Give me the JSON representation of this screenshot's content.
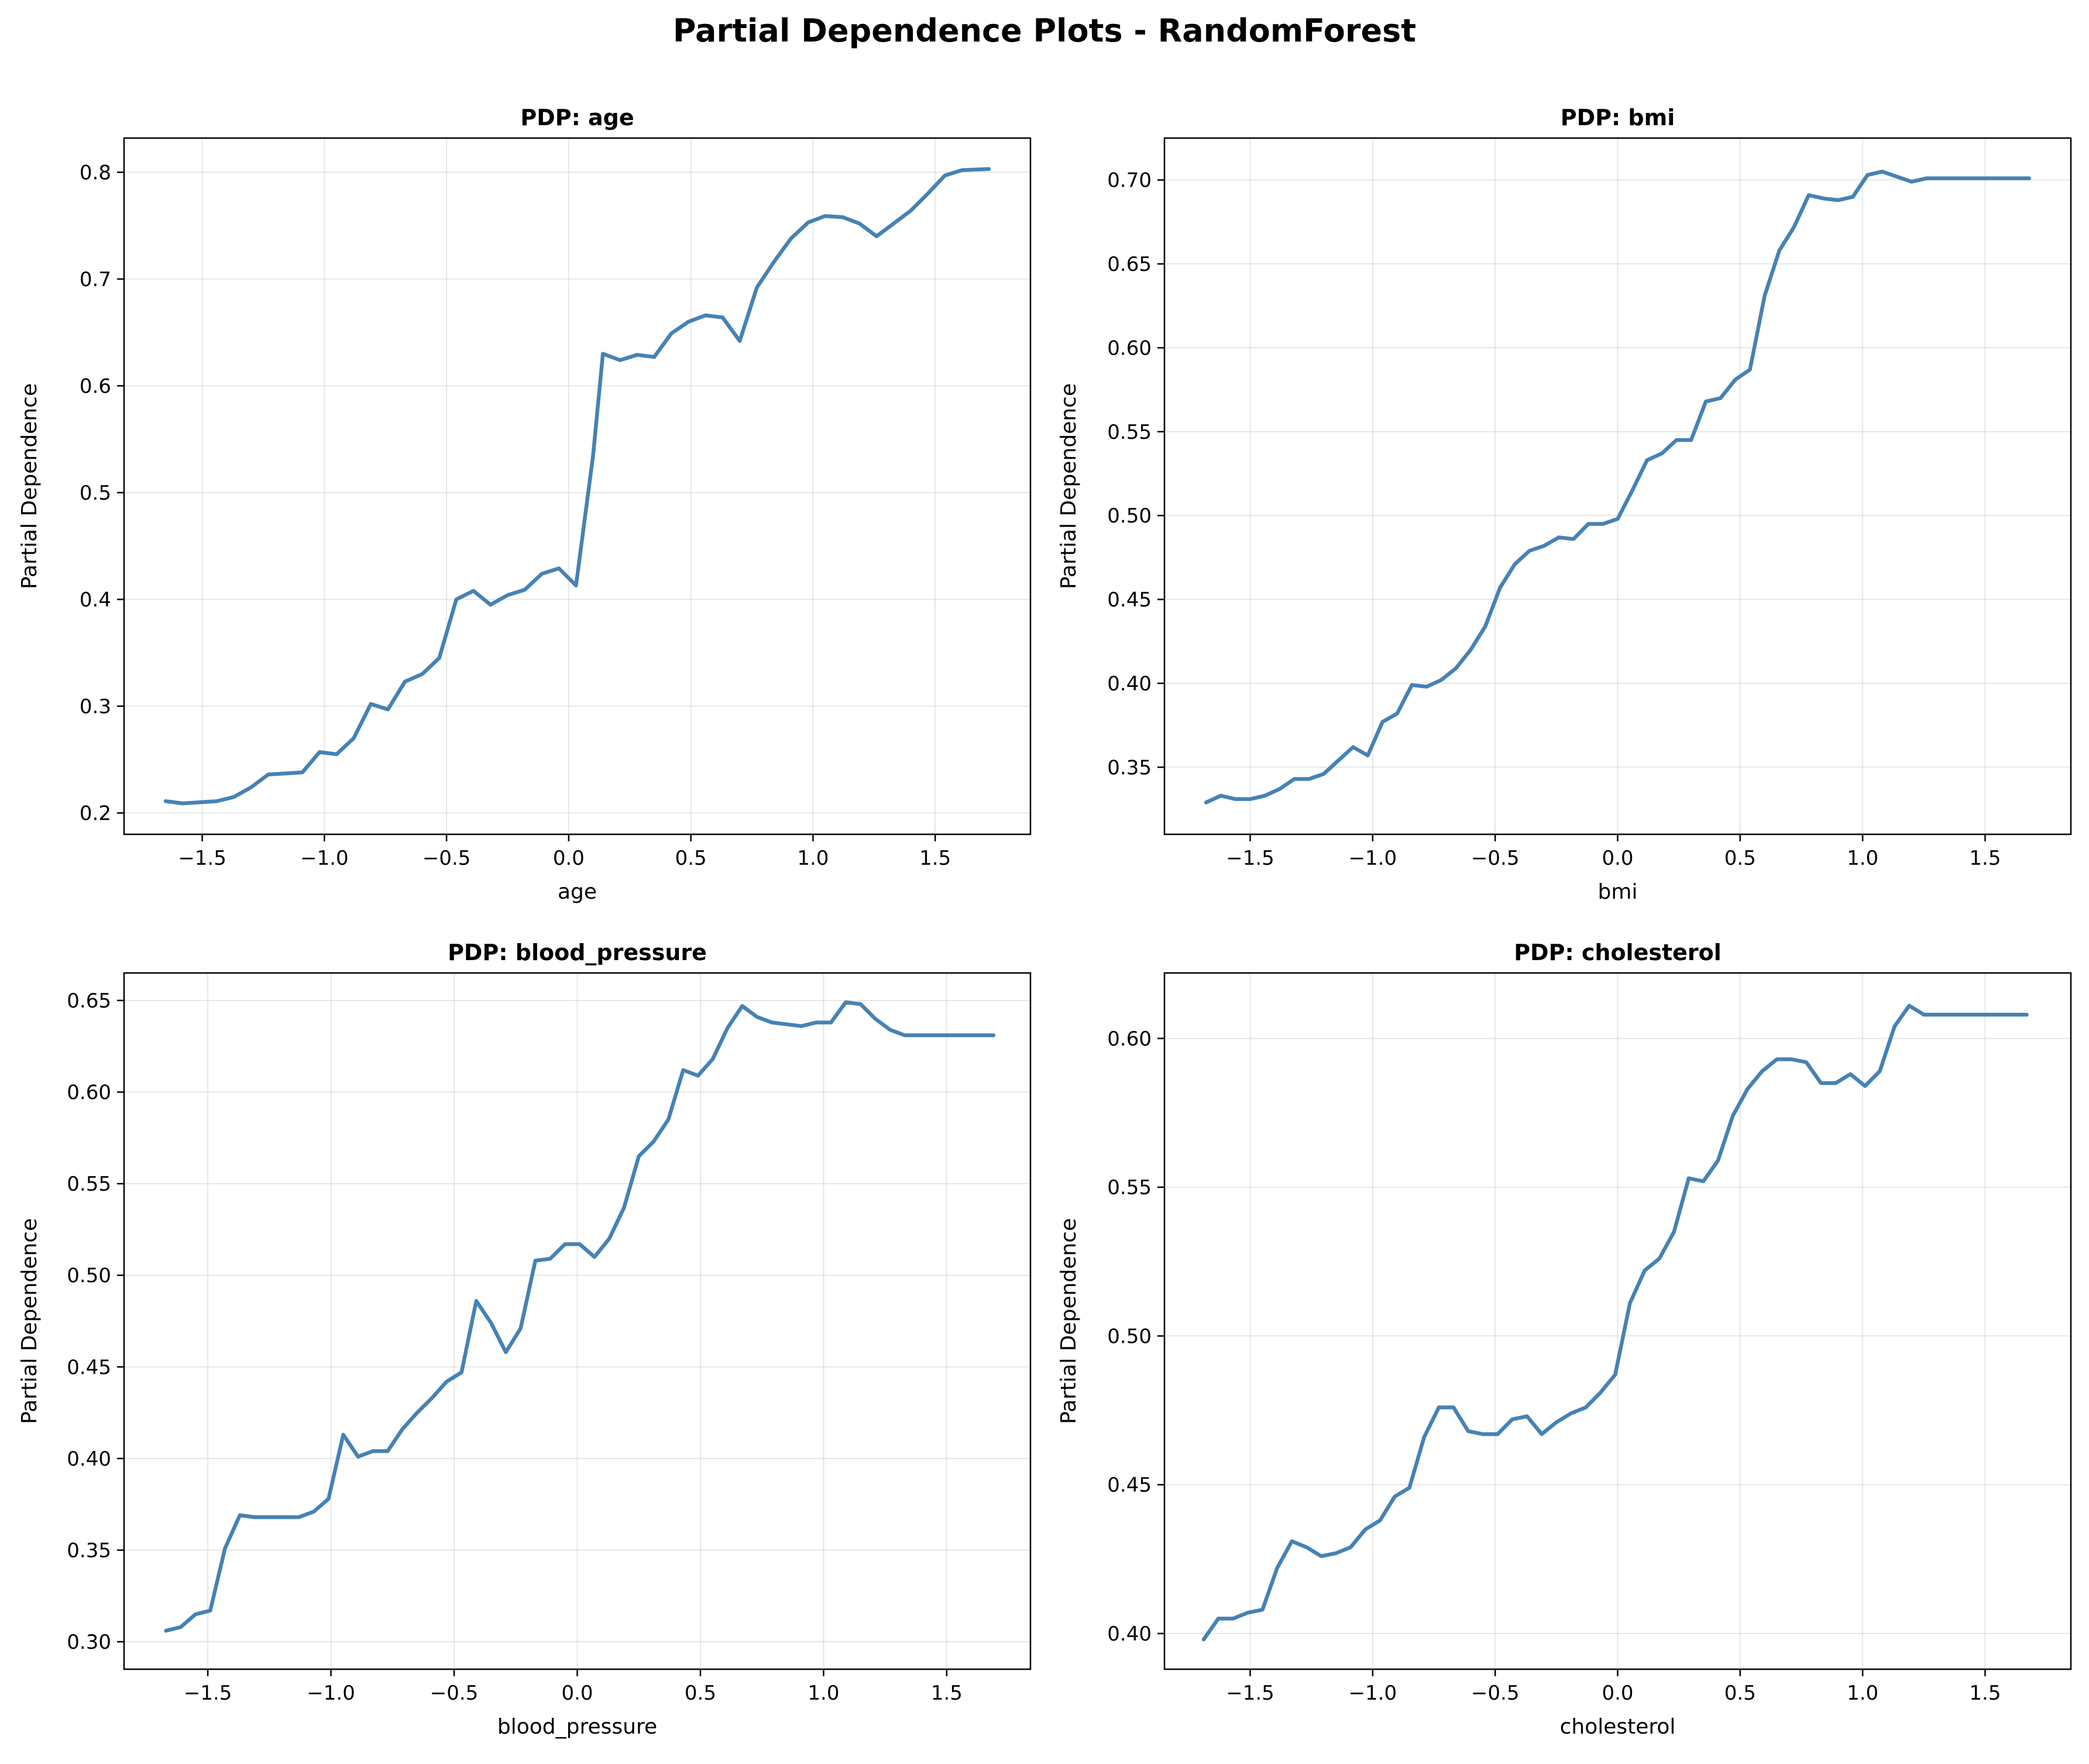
{
  "title": "Partial Dependence Plots - RandomForest",
  "line_color": "#4682b4",
  "chart_data": [
    {
      "type": "line",
      "title": "PDP: age",
      "xlabel": "age",
      "ylabel": "Partial Dependence",
      "xlim": [
        -1.82,
        1.89
      ],
      "ylim": [
        0.18,
        0.832
      ],
      "xticks": [
        -1.5,
        -1.0,
        -0.5,
        0.0,
        0.5,
        1.0,
        1.5
      ],
      "xtick_labels": [
        "−1.5",
        "−1.0",
        "−0.5",
        "0.0",
        "0.5",
        "1.0",
        "1.5"
      ],
      "yticks": [
        0.2,
        0.3,
        0.4,
        0.5,
        0.6,
        0.7,
        0.8
      ],
      "ytick_labels": [
        "0.2",
        "0.3",
        "0.4",
        "0.5",
        "0.6",
        "0.7",
        "0.8"
      ],
      "grid": true,
      "x": [
        -1.65,
        -1.58,
        -1.51,
        -1.44,
        -1.37,
        -1.3,
        -1.23,
        -1.16,
        -1.09,
        -1.02,
        -0.95,
        -0.88,
        -0.81,
        -0.74,
        -0.67,
        -0.6,
        -0.53,
        -0.46,
        -0.39,
        -0.32,
        -0.25,
        -0.18,
        -0.11,
        -0.04,
        0.03,
        0.1,
        0.14,
        0.21,
        0.28,
        0.35,
        0.42,
        0.49,
        0.56,
        0.63,
        0.7,
        0.77,
        0.84,
        0.91,
        0.98,
        1.05,
        1.12,
        1.19,
        1.26,
        1.33,
        1.4,
        1.47,
        1.54,
        1.61,
        1.72
      ],
      "y": [
        0.211,
        0.209,
        0.21,
        0.211,
        0.215,
        0.224,
        0.236,
        0.237,
        0.238,
        0.257,
        0.255,
        0.27,
        0.302,
        0.297,
        0.323,
        0.33,
        0.345,
        0.4,
        0.408,
        0.395,
        0.404,
        0.409,
        0.424,
        0.429,
        0.413,
        0.535,
        0.63,
        0.624,
        0.629,
        0.627,
        0.649,
        0.66,
        0.666,
        0.664,
        0.642,
        0.692,
        0.716,
        0.738,
        0.753,
        0.759,
        0.758,
        0.752,
        0.74,
        0.752,
        0.764,
        0.78,
        0.797,
        0.802,
        0.803
      ]
    },
    {
      "type": "line",
      "title": "PDP: bmi",
      "xlabel": "bmi",
      "ylabel": "Partial Dependence",
      "xlim": [
        -1.85,
        1.85
      ],
      "ylim": [
        0.31,
        0.725
      ],
      "xticks": [
        -1.5,
        -1.0,
        -0.5,
        0.0,
        0.5,
        1.0,
        1.5
      ],
      "xtick_labels": [
        "−1.5",
        "−1.0",
        "−0.5",
        "0.0",
        "0.5",
        "1.0",
        "1.5"
      ],
      "yticks": [
        0.35,
        0.4,
        0.45,
        0.5,
        0.55,
        0.6,
        0.65,
        0.7
      ],
      "ytick_labels": [
        "0.35",
        "0.40",
        "0.45",
        "0.50",
        "0.55",
        "0.60",
        "0.65",
        "0.70"
      ],
      "grid": true,
      "x": [
        -1.68,
        -1.62,
        -1.56,
        -1.5,
        -1.44,
        -1.38,
        -1.32,
        -1.26,
        -1.2,
        -1.14,
        -1.08,
        -1.02,
        -0.96,
        -0.9,
        -0.84,
        -0.78,
        -0.72,
        -0.66,
        -0.6,
        -0.54,
        -0.48,
        -0.42,
        -0.36,
        -0.3,
        -0.24,
        -0.18,
        -0.12,
        -0.06,
        0.0,
        0.06,
        0.12,
        0.18,
        0.24,
        0.3,
        0.36,
        0.42,
        0.48,
        0.54,
        0.6,
        0.66,
        0.72,
        0.78,
        0.84,
        0.9,
        0.96,
        1.02,
        1.08,
        1.14,
        1.2,
        1.26,
        1.32,
        1.38,
        1.44,
        1.5,
        1.56,
        1.62,
        1.68
      ],
      "y": [
        0.329,
        0.333,
        0.331,
        0.331,
        0.333,
        0.337,
        0.343,
        0.343,
        0.346,
        0.354,
        0.362,
        0.357,
        0.377,
        0.382,
        0.399,
        0.398,
        0.402,
        0.409,
        0.42,
        0.434,
        0.457,
        0.471,
        0.479,
        0.482,
        0.487,
        0.486,
        0.495,
        0.495,
        0.498,
        0.515,
        0.533,
        0.537,
        0.545,
        0.545,
        0.568,
        0.57,
        0.581,
        0.587,
        0.631,
        0.658,
        0.672,
        0.691,
        0.689,
        0.688,
        0.69,
        0.703,
        0.705,
        0.702,
        0.699,
        0.701,
        0.701,
        0.701,
        0.701,
        0.701,
        0.701,
        0.701,
        0.701
      ]
    },
    {
      "type": "line",
      "title": "PDP: blood_pressure",
      "xlabel": "blood_pressure",
      "ylabel": "Partial Dependence",
      "xlim": [
        -1.84,
        1.84
      ],
      "ylim": [
        0.285,
        0.665
      ],
      "xticks": [
        -1.5,
        -1.0,
        -0.5,
        0.0,
        0.5,
        1.0,
        1.5
      ],
      "xtick_labels": [
        "−1.5",
        "−1.0",
        "−0.5",
        "0.0",
        "0.5",
        "1.0",
        "1.5"
      ],
      "yticks": [
        0.3,
        0.35,
        0.4,
        0.45,
        0.5,
        0.55,
        0.6,
        0.65
      ],
      "ytick_labels": [
        "0.30",
        "0.35",
        "0.40",
        "0.45",
        "0.50",
        "0.55",
        "0.60",
        "0.65"
      ],
      "grid": true,
      "x": [
        -1.67,
        -1.61,
        -1.55,
        -1.49,
        -1.43,
        -1.37,
        -1.31,
        -1.25,
        -1.19,
        -1.13,
        -1.07,
        -1.01,
        -0.95,
        -0.89,
        -0.83,
        -0.77,
        -0.71,
        -0.65,
        -0.59,
        -0.53,
        -0.47,
        -0.41,
        -0.35,
        -0.29,
        -0.23,
        -0.17,
        -0.11,
        -0.05,
        0.01,
        0.07,
        0.13,
        0.19,
        0.25,
        0.31,
        0.37,
        0.43,
        0.49,
        0.55,
        0.61,
        0.67,
        0.73,
        0.79,
        0.85,
        0.91,
        0.97,
        1.03,
        1.09,
        1.15,
        1.21,
        1.27,
        1.33,
        1.39,
        1.45,
        1.51,
        1.57,
        1.63,
        1.69
      ],
      "y": [
        0.306,
        0.308,
        0.315,
        0.317,
        0.351,
        0.369,
        0.368,
        0.368,
        0.368,
        0.368,
        0.371,
        0.378,
        0.413,
        0.401,
        0.404,
        0.404,
        0.416,
        0.425,
        0.433,
        0.442,
        0.447,
        0.486,
        0.474,
        0.458,
        0.471,
        0.508,
        0.509,
        0.517,
        0.517,
        0.51,
        0.52,
        0.537,
        0.565,
        0.573,
        0.585,
        0.612,
        0.609,
        0.618,
        0.635,
        0.647,
        0.641,
        0.638,
        0.637,
        0.636,
        0.638,
        0.638,
        0.649,
        0.648,
        0.64,
        0.634,
        0.631,
        0.631,
        0.631,
        0.631,
        0.631,
        0.631,
        0.631
      ]
    },
    {
      "type": "line",
      "title": "PDP: cholesterol",
      "xlabel": "cholesterol",
      "ylabel": "Partial Dependence",
      "xlim": [
        -1.85,
        1.85
      ],
      "ylim": [
        0.388,
        0.622
      ],
      "xticks": [
        -1.5,
        -1.0,
        -0.5,
        0.0,
        0.5,
        1.0,
        1.5
      ],
      "xtick_labels": [
        "−1.5",
        "−1.0",
        "−0.5",
        "0.0",
        "0.5",
        "1.0",
        "1.5"
      ],
      "yticks": [
        0.4,
        0.45,
        0.5,
        0.55,
        0.6
      ],
      "ytick_labels": [
        "0.40",
        "0.45",
        "0.50",
        "0.55",
        "0.60"
      ],
      "grid": true,
      "x": [
        -1.69,
        -1.63,
        -1.57,
        -1.51,
        -1.45,
        -1.39,
        -1.33,
        -1.27,
        -1.21,
        -1.15,
        -1.09,
        -1.03,
        -0.97,
        -0.91,
        -0.85,
        -0.79,
        -0.73,
        -0.67,
        -0.61,
        -0.55,
        -0.49,
        -0.43,
        -0.37,
        -0.31,
        -0.25,
        -0.19,
        -0.13,
        -0.07,
        -0.01,
        0.05,
        0.11,
        0.17,
        0.23,
        0.29,
        0.35,
        0.41,
        0.47,
        0.53,
        0.59,
        0.65,
        0.71,
        0.77,
        0.83,
        0.89,
        0.95,
        1.01,
        1.07,
        1.13,
        1.19,
        1.25,
        1.31,
        1.37,
        1.43,
        1.49,
        1.55,
        1.61,
        1.67
      ],
      "y": [
        0.398,
        0.405,
        0.405,
        0.407,
        0.408,
        0.422,
        0.431,
        0.429,
        0.426,
        0.427,
        0.429,
        0.435,
        0.438,
        0.446,
        0.449,
        0.466,
        0.476,
        0.476,
        0.468,
        0.467,
        0.467,
        0.472,
        0.473,
        0.467,
        0.471,
        0.474,
        0.476,
        0.481,
        0.487,
        0.511,
        0.522,
        0.526,
        0.535,
        0.553,
        0.552,
        0.559,
        0.574,
        0.583,
        0.589,
        0.593,
        0.593,
        0.592,
        0.585,
        0.585,
        0.588,
        0.584,
        0.589,
        0.604,
        0.611,
        0.608,
        0.608,
        0.608,
        0.608,
        0.608,
        0.608,
        0.608,
        0.608
      ]
    }
  ]
}
